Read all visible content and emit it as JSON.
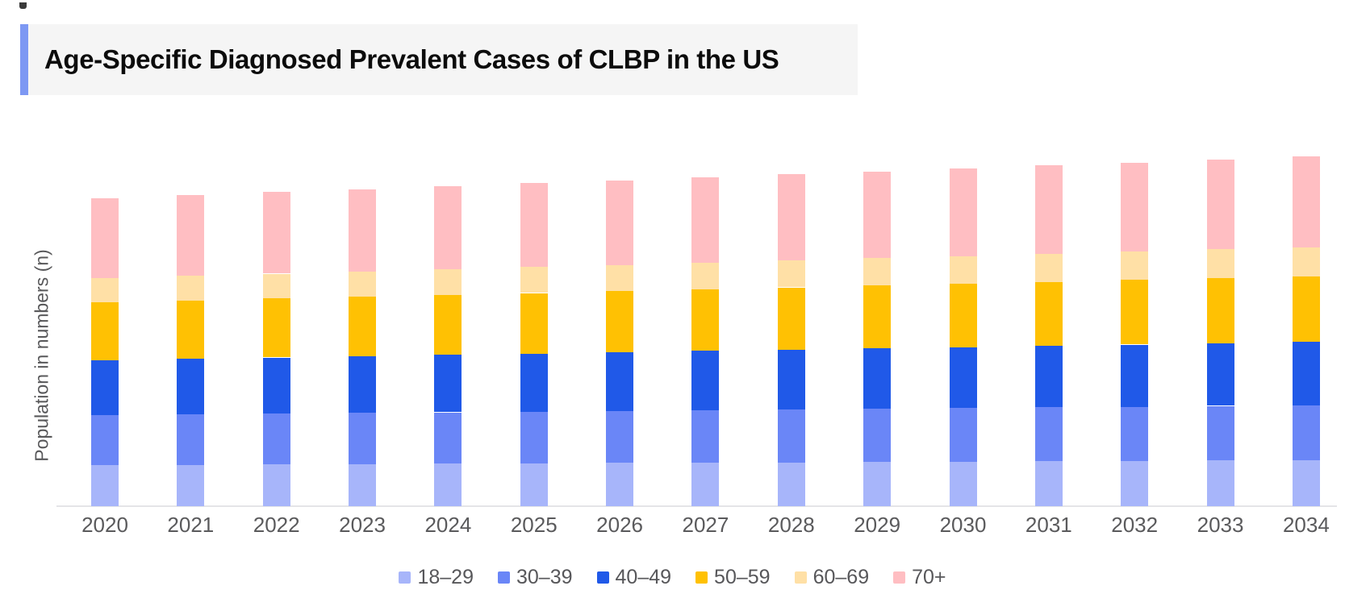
{
  "title": {
    "text": "Age-Specific Diagnosed Prevalent Cases of CLBP in the US"
  },
  "y_axis": {
    "label": "Population in numbers (n)",
    "tick_labels": []
  },
  "chart_data": {
    "type": "bar",
    "stacked": true,
    "title": "Age-Specific Diagnosed Prevalent Cases of CLBP in the US",
    "xlabel": "",
    "ylabel": "Population in numbers (n)",
    "legend_position": "bottom",
    "grid": false,
    "y_axis_tick_labels": "none (axis is unlabeled, no numeric scale shown)",
    "values_unit": "relative height units estimated from pixels (no numeric scale visible)",
    "categories": [
      "2020",
      "2021",
      "2022",
      "2023",
      "2024",
      "2025",
      "2026",
      "2027",
      "2028",
      "2029",
      "2030",
      "2031",
      "2032",
      "2033",
      "2034"
    ],
    "series": [
      {
        "name": "18–29",
        "color": "#a7b5fa",
        "values": [
          51.0,
          51.4,
          51.9,
          52.3,
          52.7,
          53.1,
          53.6,
          54.0,
          54.4,
          54.9,
          55.3,
          55.7,
          56.1,
          56.6,
          57.0
        ]
      },
      {
        "name": "30–39",
        "color": "#6a86f7",
        "values": [
          62.0,
          62.5,
          62.9,
          63.4,
          63.8,
          64.3,
          64.7,
          65.2,
          65.6,
          66.1,
          66.5,
          67.0,
          67.4,
          67.9,
          68.3
        ]
      },
      {
        "name": "40–49",
        "color": "#2059e8",
        "values": [
          68.3,
          69.0,
          69.7,
          70.5,
          71.2,
          71.9,
          72.6,
          73.4,
          74.1,
          74.8,
          75.5,
          76.2,
          77.0,
          77.7,
          78.4
        ]
      },
      {
        "name": "50–59",
        "color": "#ffc103",
        "values": [
          71.7,
          72.4,
          73.1,
          73.8,
          74.5,
          75.2,
          75.9,
          76.6,
          77.4,
          78.1,
          78.8,
          79.5,
          80.2,
          80.9,
          81.6
        ]
      },
      {
        "name": "60–69",
        "color": "#ffe0a6",
        "values": [
          30.0,
          30.4,
          30.9,
          31.3,
          31.7,
          32.1,
          32.6,
          33.0,
          33.4,
          33.9,
          34.3,
          34.7,
          35.1,
          35.6,
          36.0
        ]
      },
      {
        "name": "70+",
        "color": "#ffbec2",
        "values": [
          99.3,
          100.2,
          101.2,
          102.1,
          103.0,
          104.0,
          104.9,
          105.8,
          106.8,
          107.7,
          108.7,
          109.6,
          110.5,
          111.5,
          112.4
        ]
      }
    ]
  },
  "colors": {
    "title_accent": "#7d98f3",
    "title_background": "#f5f5f5",
    "axis_line": "#e4e4e7",
    "axis_text": "#5a5a5c",
    "legend_text": "#57575a"
  }
}
